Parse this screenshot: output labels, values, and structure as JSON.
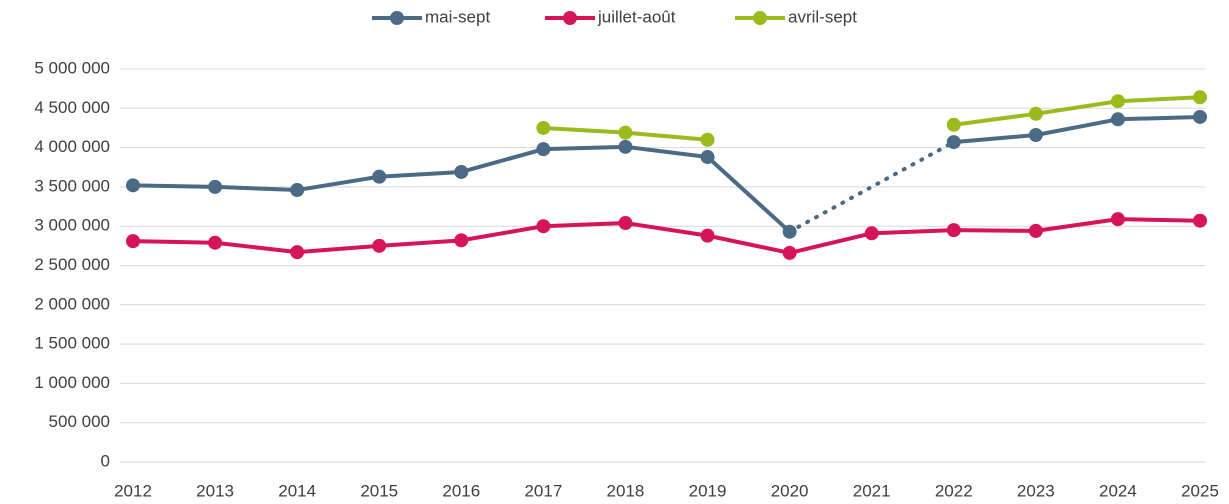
{
  "chart_data": {
    "type": "line",
    "categories": [
      "2012",
      "2013",
      "2014",
      "2015",
      "2016",
      "2017",
      "2018",
      "2019",
      "2020",
      "2021",
      "2022",
      "2023",
      "2024",
      "2025"
    ],
    "series": [
      {
        "name": "mai-sept",
        "color": "#4a6a85",
        "values": [
          3520000,
          3500000,
          3460000,
          3630000,
          3690000,
          3980000,
          4010000,
          3880000,
          2930000,
          null,
          4070000,
          4160000,
          4360000,
          4390000
        ]
      },
      {
        "name": "juillet-août",
        "color": "#d6145a",
        "values": [
          2810000,
          2790000,
          2670000,
          2750000,
          2820000,
          3000000,
          3040000,
          2880000,
          2660000,
          2910000,
          2950000,
          2940000,
          3090000,
          3070000
        ]
      },
      {
        "name": "avril-sept",
        "color": "#9bbb1c",
        "values": [
          null,
          null,
          null,
          null,
          null,
          4250000,
          4190000,
          4100000,
          null,
          null,
          4290000,
          4430000,
          4590000,
          4640000
        ]
      }
    ],
    "ylim": [
      0,
      5000000
    ],
    "yticks": [
      0,
      {
        "value": 500000,
        "label": "500 000"
      },
      {
        "value": 1000000,
        "label": "1 000 000"
      },
      {
        "value": 1500000,
        "label": "1 500 000"
      },
      {
        "value": 2000000,
        "label": "2 000 000"
      },
      {
        "value": 2500000,
        "label": "2 500 000"
      },
      {
        "value": 3000000,
        "label": "3 000 000"
      },
      {
        "value": 3500000,
        "label": "3 500 000"
      },
      {
        "value": 4000000,
        "label": "4 000 000"
      },
      {
        "value": 4500000,
        "label": "4 500 000"
      },
      {
        "value": 5000000,
        "label": "5 000 000"
      }
    ],
    "grid": true,
    "legend": "top"
  }
}
